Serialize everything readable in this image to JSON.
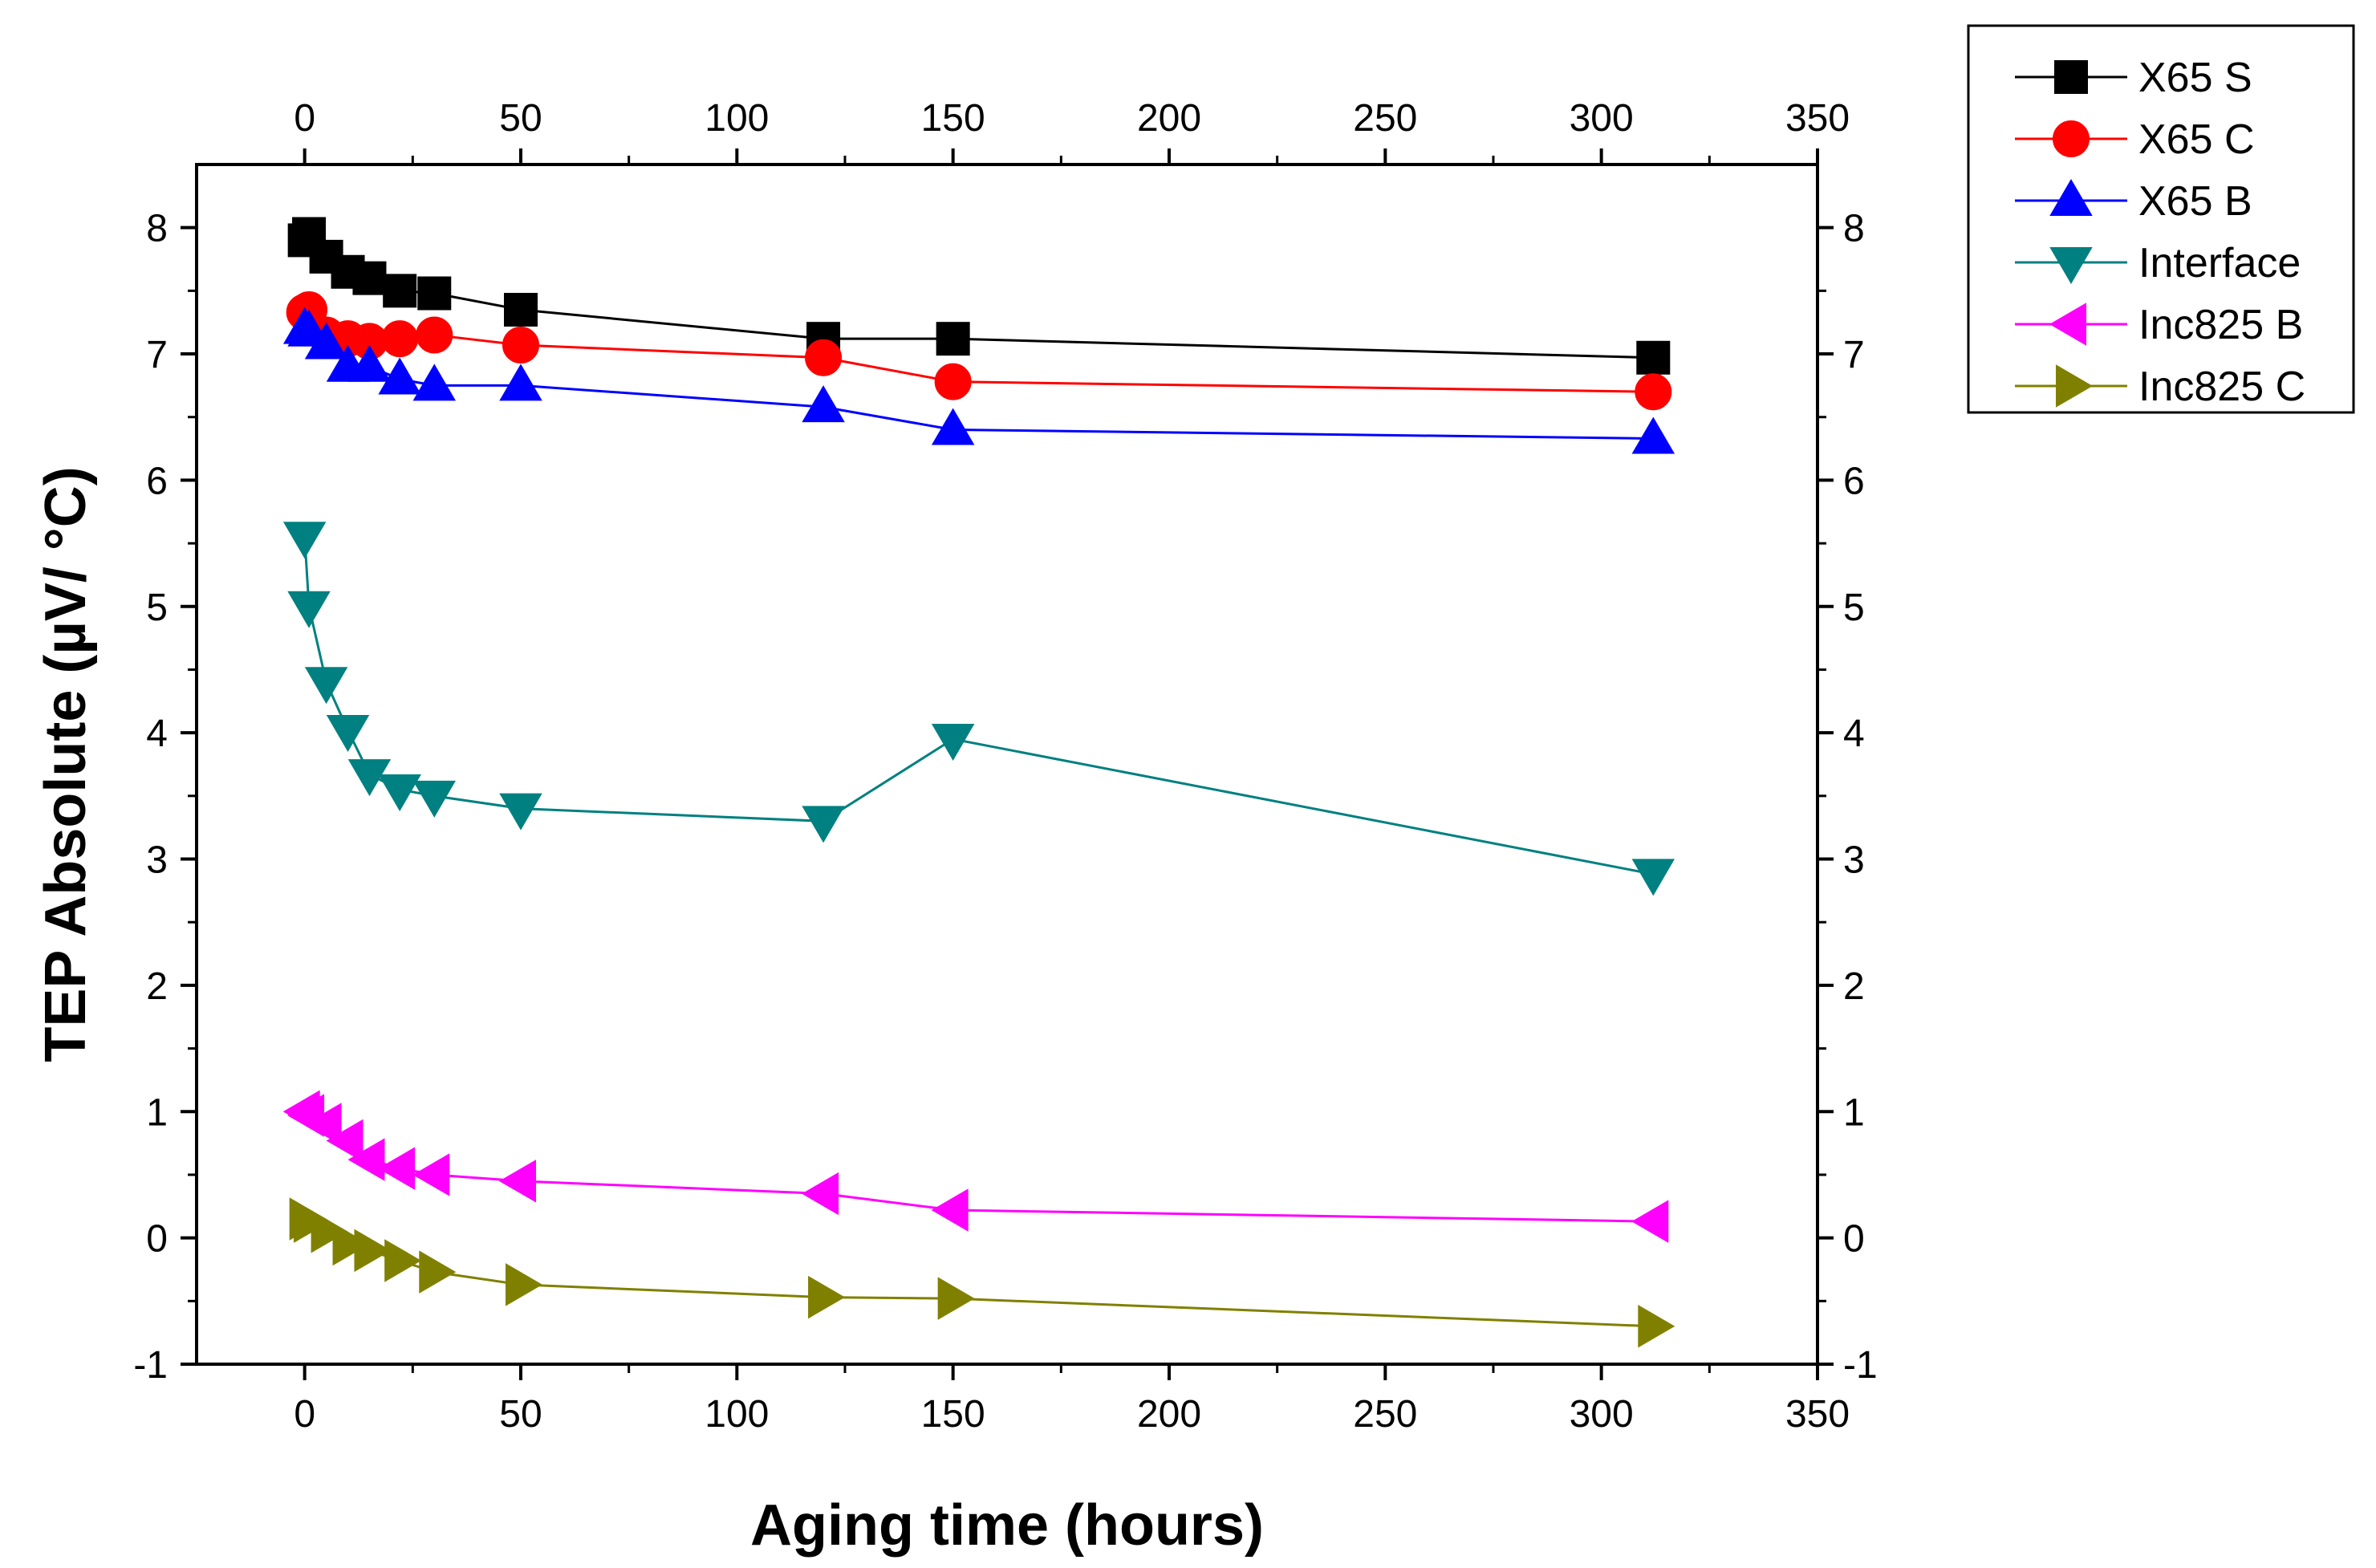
{
  "chart_data": {
    "type": "line",
    "title": "",
    "xlabel": "Aging time (hours)",
    "ylabel": "TEP Absolute (µV/ °C)",
    "xlim": [
      -25,
      350
    ],
    "ylim": [
      -1,
      8.5
    ],
    "x_ticks": [
      "0",
      "50",
      "100",
      "150",
      "200",
      "250",
      "300",
      "350"
    ],
    "x_tick_values": [
      0,
      50,
      100,
      150,
      200,
      250,
      300,
      350
    ],
    "y_ticks": [
      "-1",
      "0",
      "1",
      "2",
      "3",
      "4",
      "5",
      "6",
      "7",
      "8"
    ],
    "y_tick_values": [
      -1,
      0,
      1,
      2,
      3,
      4,
      5,
      6,
      7,
      8
    ],
    "legend_position": "top-right, outside plot",
    "series": [
      {
        "name": "X65 S",
        "color": "#000000",
        "marker": "square",
        "x": [
          0,
          1,
          5,
          10,
          15,
          22,
          30,
          50,
          120,
          150,
          312
        ],
        "values": [
          7.9,
          7.95,
          7.77,
          7.65,
          7.6,
          7.5,
          7.48,
          7.35,
          7.12,
          7.12,
          6.97
        ]
      },
      {
        "name": "X65 C",
        "color": "#ff0000",
        "marker": "circle",
        "x": [
          0,
          1,
          5,
          10,
          15,
          22,
          30,
          50,
          120,
          150,
          312
        ],
        "values": [
          7.33,
          7.35,
          7.15,
          7.12,
          7.1,
          7.12,
          7.15,
          7.07,
          6.97,
          6.78,
          6.7
        ]
      },
      {
        "name": "X65 B",
        "color": "#0000ff",
        "marker": "triangle-up",
        "x": [
          0,
          1,
          5,
          10,
          15,
          22,
          30,
          50,
          120,
          150,
          312
        ],
        "values": [
          7.2,
          7.18,
          7.08,
          6.9,
          6.9,
          6.8,
          6.75,
          6.75,
          6.58,
          6.4,
          6.33
        ]
      },
      {
        "name": "Interface",
        "color": "#008080",
        "marker": "triangle-down",
        "x": [
          0,
          1,
          5,
          10,
          15,
          22,
          30,
          50,
          120,
          150,
          312
        ],
        "values": [
          5.55,
          5.0,
          4.4,
          4.02,
          3.67,
          3.55,
          3.5,
          3.4,
          3.3,
          3.95,
          2.88
        ]
      },
      {
        "name": "Inc825 B",
        "color": "#ff00ff",
        "marker": "triangle-left",
        "x": [
          0,
          1,
          5,
          10,
          15,
          22,
          30,
          50,
          120,
          150,
          312
        ],
        "values": [
          1.0,
          0.97,
          0.9,
          0.77,
          0.62,
          0.55,
          0.5,
          0.45,
          0.35,
          0.22,
          0.13
        ]
      },
      {
        "name": "Inc825 C",
        "color": "#808000",
        "marker": "triangle-right",
        "x": [
          0,
          1,
          5,
          10,
          15,
          22,
          30,
          50,
          120,
          150,
          312
        ],
        "values": [
          0.15,
          0.13,
          0.05,
          -0.05,
          -0.1,
          -0.18,
          -0.27,
          -0.37,
          -0.47,
          -0.48,
          -0.7
        ]
      }
    ]
  }
}
